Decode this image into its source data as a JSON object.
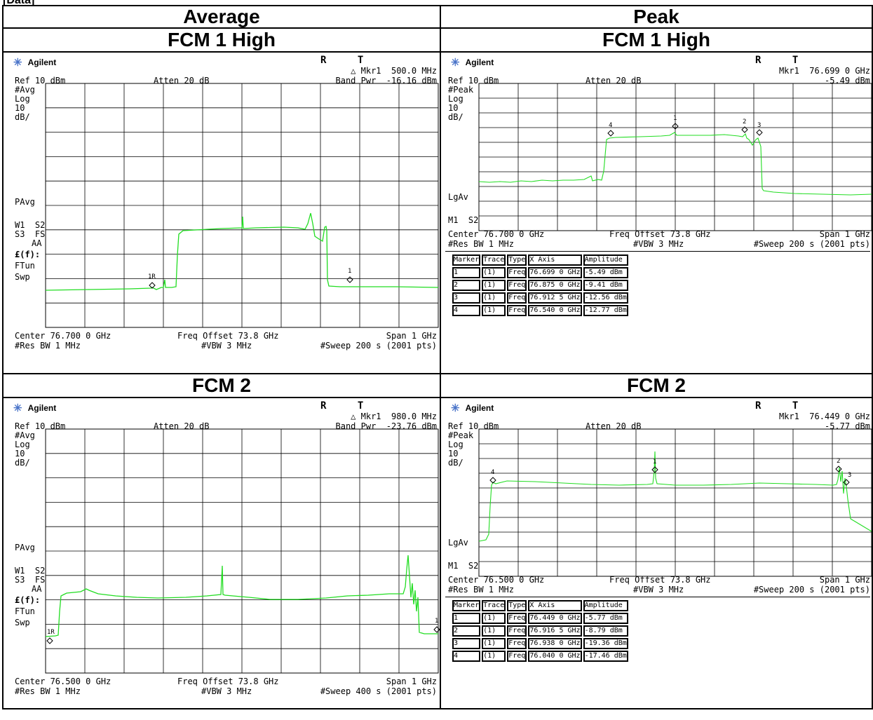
{
  "header_tag": "[Data]",
  "columns": [
    "Average",
    "Peak"
  ],
  "common": {
    "brand": "Agilent",
    "rt": "R T",
    "ref": "Ref 10 dBm",
    "atten": "Atten 20 dB",
    "log": "Log",
    "div": "10",
    "dbdiv": "dB/",
    "freq_offset": "Freq Offset 73.8 GHz",
    "span": "Span 1 GHz",
    "rbw": "#Res BW 1 MHz",
    "vbw": "#VBW 3 MHz",
    "pavg": "PAvg",
    "lgav": "LgAv",
    "w1s2": "W1  S2",
    "s3fs": "S3  FS",
    "aa": "AA",
    "ef": "£(f):",
    "ftun": "FTun",
    "swp": "Swp",
    "m1s2": "M1  S2",
    "avg_mode": "#Avg",
    "peak_mode": "#Peak",
    "table_head": [
      "Marker",
      "Trace",
      "Type",
      "X Axis",
      "Amplitude"
    ]
  },
  "panels": {
    "fcm1_avg": {
      "title": "FCM 1 High",
      "mkr_line": "△ Mkr1  500.0 MHz",
      "band_pwr": "Band Pwr  -16.16 dBm",
      "center": "Center 76.700 0 GHz",
      "sweep": "#Sweep 200 s (2001 pts)",
      "markers": [
        "1R",
        "1"
      ]
    },
    "fcm1_peak": {
      "title": "FCM 1 High",
      "mkr_line": "Mkr1  76.699 0 GHz",
      "mkr_amp": "-5.49 dBm",
      "center": "Center 76.700 0 GHz",
      "sweep": "#Sweep 200 s (2001 pts)",
      "markers": [
        "1",
        "2",
        "3",
        "4"
      ],
      "table": [
        [
          "1",
          "(1)",
          "Freq",
          "76.699 0 GHz",
          "-5.49 dBm"
        ],
        [
          "2",
          "(1)",
          "Freq",
          "76.875 0 GHz",
          "-9.41 dBm"
        ],
        [
          "3",
          "(1)",
          "Freq",
          "76.912 5 GHz",
          "-12.56 dBm"
        ],
        [
          "4",
          "(1)",
          "Freq",
          "76.540 0 GHz",
          "-12.77 dBm"
        ]
      ]
    },
    "fcm2_avg": {
      "title": "FCM 2",
      "mkr_line": "△ Mkr1  980.0 MHz",
      "band_pwr": "Band Pwr  -23.76 dBm",
      "center": "Center 76.500 0 GHz",
      "sweep": "#Sweep 400 s (2001 pts)",
      "markers": [
        "1R",
        "1"
      ]
    },
    "fcm2_peak": {
      "title": "FCM 2",
      "mkr_line": "Mkr1  76.449 0 GHz",
      "mkr_amp": "-5.77 dBm",
      "center": "Center 76.500 0 GHz",
      "sweep": "#Sweep 200 s (2001 pts)",
      "markers": [
        "1",
        "2",
        "3",
        "4"
      ],
      "table": [
        [
          "1",
          "(1)",
          "Freq",
          "76.449 0 GHz",
          "-5.77 dBm"
        ],
        [
          "2",
          "(1)",
          "Freq",
          "76.916 5 GHz",
          "-8.79 dBm"
        ],
        [
          "3",
          "(1)",
          "Freq",
          "76.938 0 GHz",
          "-19.36 dBm"
        ],
        [
          "4",
          "(1)",
          "Freq",
          "76.040 0 GHz",
          "-17.46 dBm"
        ]
      ]
    }
  }
}
